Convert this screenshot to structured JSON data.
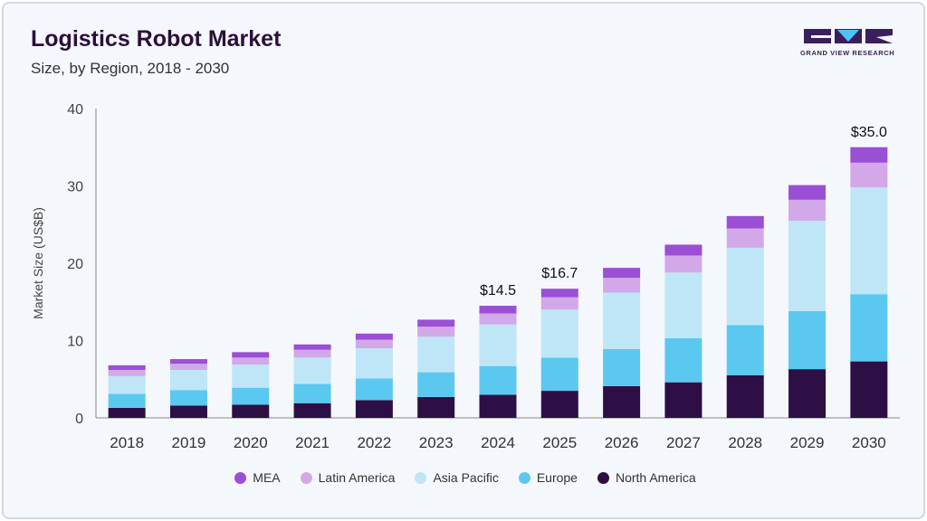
{
  "header": {
    "title": "Logistics Robot Market",
    "subtitle": "Size, by Region, 2018 - 2030"
  },
  "logo": {
    "text": "GRAND VIEW RESEARCH",
    "colors": {
      "dark": "#3b1f5c",
      "accent": "#4fc3f7"
    }
  },
  "chart_data": {
    "type": "bar",
    "stacked": true,
    "categories": [
      "2018",
      "2019",
      "2020",
      "2021",
      "2022",
      "2023",
      "2024",
      "2025",
      "2026",
      "2027",
      "2028",
      "2029",
      "2030"
    ],
    "series": [
      {
        "name": "North America",
        "color": "#2d0f45",
        "values": [
          1.3,
          1.6,
          1.7,
          1.9,
          2.3,
          2.7,
          3.0,
          3.5,
          4.1,
          4.6,
          5.5,
          6.3,
          7.3
        ]
      },
      {
        "name": "Europe",
        "color": "#5bc8f0",
        "values": [
          1.8,
          2.0,
          2.2,
          2.5,
          2.8,
          3.2,
          3.7,
          4.3,
          4.8,
          5.7,
          6.5,
          7.5,
          8.7
        ]
      },
      {
        "name": "Asia Pacific",
        "color": "#bfe6f6",
        "values": [
          2.3,
          2.6,
          3.0,
          3.4,
          3.9,
          4.6,
          5.4,
          6.2,
          7.3,
          8.5,
          10.0,
          11.7,
          13.8
        ]
      },
      {
        "name": "Latin America",
        "color": "#d3a8e8",
        "values": [
          0.8,
          0.8,
          0.9,
          1.0,
          1.1,
          1.3,
          1.4,
          1.6,
          1.9,
          2.2,
          2.5,
          2.7,
          3.2
        ]
      },
      {
        "name": "MEA",
        "color": "#9b4fd4",
        "values": [
          0.6,
          0.6,
          0.7,
          0.7,
          0.8,
          0.9,
          1.0,
          1.1,
          1.3,
          1.4,
          1.6,
          1.9,
          2.0
        ]
      }
    ],
    "legend_order": [
      "MEA",
      "Latin America",
      "Asia Pacific",
      "Europe",
      "North America"
    ],
    "annotations": [
      {
        "category": "2024",
        "label": "$14.5"
      },
      {
        "category": "2025",
        "label": "$16.7"
      },
      {
        "category": "2030",
        "label": "$35.0"
      }
    ],
    "ylabel": "Market Size (US$B)",
    "xlabel": "",
    "ylim": [
      0,
      40
    ],
    "yticks": [
      0,
      10,
      20,
      30,
      40
    ],
    "grid": false,
    "legend_position": "bottom"
  }
}
